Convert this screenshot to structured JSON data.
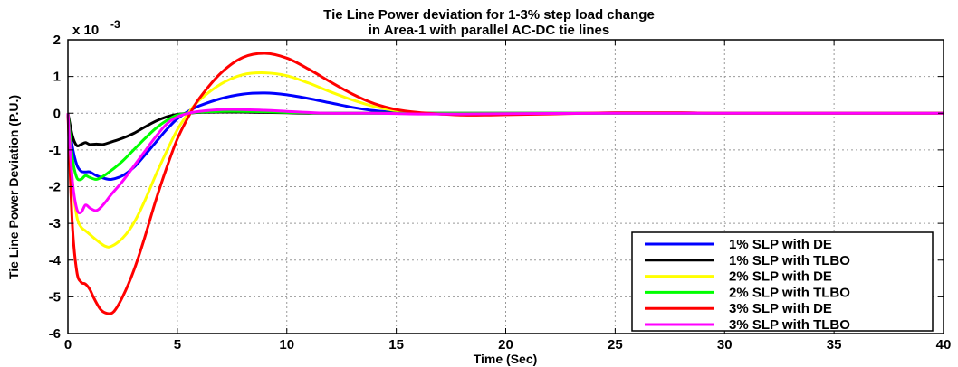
{
  "chart_data": {
    "type": "line",
    "title": "Tie Line Power deviation for 1-3% step load change",
    "subtitle": "in Area-1 with parallel AC-DC  tie lines",
    "xlabel": "Time (Sec)",
    "ylabel": "Tie Line Power Deviation (P.U.)",
    "y_multiplier": "x 10",
    "y_multiplier_exp": "-3",
    "xlim": [
      0,
      40
    ],
    "ylim": [
      -6,
      2
    ],
    "xticks": [
      "0",
      "5",
      "10",
      "15",
      "20",
      "25",
      "30",
      "35",
      "40"
    ],
    "yticks": [
      "2",
      "1",
      "0",
      "-1",
      "-2",
      "-3",
      "-4",
      "-5",
      "-6"
    ],
    "grid": true,
    "legend_position": "bottom-right",
    "series": [
      {
        "name": "1% SLP with DE",
        "color": "#0000ff",
        "x": [
          0,
          0.2,
          0.4,
          0.6,
          0.8,
          1.0,
          1.3,
          1.7,
          2.0,
          2.5,
          3,
          3.5,
          4,
          4.5,
          5,
          5.5,
          6,
          7,
          8,
          9,
          10,
          11,
          12,
          13,
          14,
          15,
          16,
          17,
          18,
          19,
          20,
          22,
          25,
          28,
          30,
          35,
          40
        ],
        "y": [
          0,
          -0.9,
          -1.4,
          -1.58,
          -1.6,
          -1.6,
          -1.7,
          -1.78,
          -1.8,
          -1.7,
          -1.48,
          -1.15,
          -0.8,
          -0.45,
          -0.15,
          0.05,
          0.2,
          0.4,
          0.52,
          0.55,
          0.5,
          0.4,
          0.28,
          0.16,
          0.07,
          0.02,
          0,
          -0.02,
          -0.03,
          -0.03,
          -0.02,
          -0.01,
          0.01,
          0.01,
          0,
          0,
          0
        ]
      },
      {
        "name": "1% SLP with TLBO",
        "color": "#000000",
        "x": [
          0,
          0.2,
          0.4,
          0.6,
          0.8,
          1.0,
          1.3,
          1.6,
          2.0,
          2.5,
          3,
          3.5,
          4,
          4.5,
          5,
          5.5,
          6,
          7,
          8,
          9,
          10,
          11,
          12,
          14,
          16,
          20,
          25,
          30,
          35,
          40
        ],
        "y": [
          0,
          -0.6,
          -0.88,
          -0.85,
          -0.8,
          -0.85,
          -0.84,
          -0.85,
          -0.78,
          -0.68,
          -0.55,
          -0.38,
          -0.22,
          -0.1,
          -0.03,
          0,
          0.02,
          0.03,
          0.03,
          0.02,
          0.01,
          0,
          0,
          0,
          0,
          0,
          0,
          0,
          0,
          0
        ]
      },
      {
        "name": "2% SLP with DE",
        "color": "#ffff00",
        "x": [
          0,
          0.2,
          0.4,
          0.6,
          0.8,
          1.0,
          1.3,
          1.7,
          2.0,
          2.5,
          3,
          3.5,
          4,
          4.5,
          5,
          5.5,
          6,
          7,
          8,
          9,
          10,
          11,
          12,
          13,
          14,
          15,
          16,
          17,
          18,
          19,
          20,
          22,
          25,
          28,
          30,
          35,
          40
        ],
        "y": [
          0,
          -1.8,
          -2.8,
          -3.1,
          -3.2,
          -3.3,
          -3.45,
          -3.62,
          -3.62,
          -3.4,
          -3.0,
          -2.4,
          -1.7,
          -1.05,
          -0.45,
          0,
          0.35,
          0.8,
          1.05,
          1.1,
          1.02,
          0.82,
          0.58,
          0.36,
          0.18,
          0.07,
          0.01,
          -0.02,
          -0.04,
          -0.04,
          -0.03,
          -0.01,
          0.01,
          0.01,
          0,
          0,
          0
        ]
      },
      {
        "name": "2% SLP with TLBO",
        "color": "#00ff00",
        "x": [
          0,
          0.2,
          0.4,
          0.6,
          0.8,
          1.0,
          1.3,
          1.6,
          2.0,
          2.5,
          3,
          3.5,
          4,
          4.5,
          5,
          5.5,
          6,
          7,
          8,
          9,
          10,
          11,
          12,
          14,
          16,
          20,
          25,
          30,
          35,
          40
        ],
        "y": [
          0,
          -1.2,
          -1.75,
          -1.8,
          -1.7,
          -1.75,
          -1.8,
          -1.72,
          -1.55,
          -1.3,
          -1.0,
          -0.7,
          -0.42,
          -0.2,
          -0.05,
          0,
          0.03,
          0.05,
          0.05,
          0.04,
          0.02,
          0.01,
          0,
          0,
          0,
          0,
          0,
          0,
          0,
          0
        ]
      },
      {
        "name": "3% SLP with DE",
        "color": "#ff0000",
        "x": [
          0,
          0.2,
          0.4,
          0.6,
          0.8,
          1.0,
          1.2,
          1.5,
          1.8,
          2.1,
          2.5,
          3,
          3.5,
          4,
          4.5,
          5,
          5.5,
          6,
          7,
          8,
          9,
          10,
          11,
          12,
          13,
          14,
          15,
          16,
          17,
          18,
          19,
          20,
          22,
          25,
          28,
          30,
          35,
          40
        ],
        "y": [
          0,
          -3.0,
          -4.3,
          -4.6,
          -4.65,
          -4.8,
          -5.05,
          -5.35,
          -5.45,
          -5.4,
          -5.0,
          -4.3,
          -3.4,
          -2.4,
          -1.5,
          -0.7,
          -0.1,
          0.4,
          1.1,
          1.52,
          1.63,
          1.5,
          1.2,
          0.85,
          0.52,
          0.26,
          0.1,
          0.02,
          -0.02,
          -0.05,
          -0.05,
          -0.04,
          -0.02,
          0.01,
          0.01,
          0,
          0,
          0
        ]
      },
      {
        "name": "3% SLP with TLBO",
        "color": "#ff00ff",
        "x": [
          0,
          0.2,
          0.4,
          0.6,
          0.8,
          1.0,
          1.3,
          1.6,
          2.0,
          2.5,
          3,
          3.5,
          4,
          4.5,
          5,
          5.5,
          6,
          7,
          8,
          9,
          10,
          11,
          12,
          14,
          16,
          18,
          20,
          25,
          30,
          35,
          40
        ],
        "y": [
          0,
          -1.8,
          -2.6,
          -2.7,
          -2.5,
          -2.58,
          -2.65,
          -2.5,
          -2.2,
          -1.85,
          -1.45,
          -1.05,
          -0.65,
          -0.3,
          -0.1,
          0,
          0.05,
          0.1,
          0.1,
          0.08,
          0.05,
          0.02,
          0,
          0,
          -0.02,
          -0.02,
          -0.01,
          0,
          0,
          0,
          0
        ]
      }
    ]
  }
}
